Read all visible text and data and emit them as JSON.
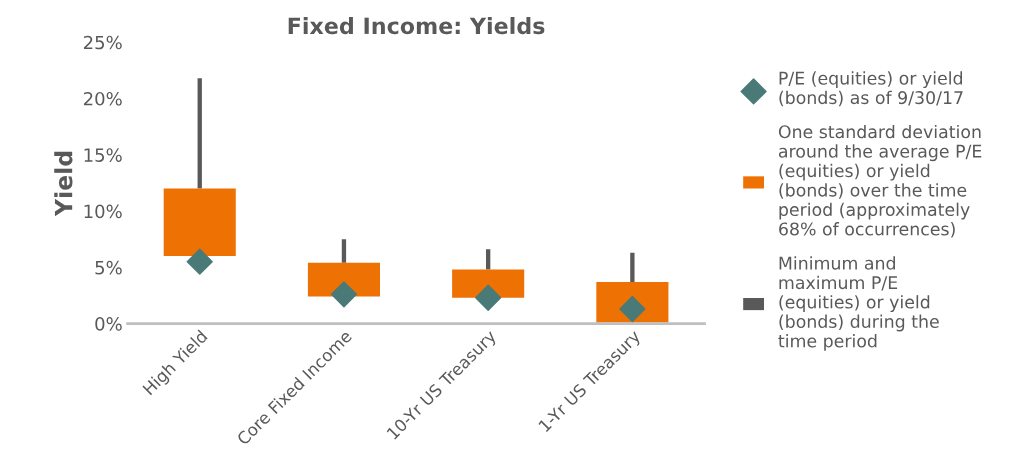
{
  "chart_data": {
    "type": "bar",
    "title": "Fixed Income: Yields",
    "ylabel": "Yield",
    "categories": [
      "High Yield",
      "Core Fixed Income",
      "10-Yr US Treasury",
      "1-Yr US Treasury"
    ],
    "series": [
      {
        "name": "Minimum and\nmaximum P/E\n(equities) or yield\n(bonds) during the\ntime period",
        "color": "#595959",
        "base": [
          12.0,
          5.4,
          4.8,
          3.7
        ],
        "values": [
          9.8,
          2.1,
          1.8,
          2.6
        ]
      },
      {
        "name": "One standard deviation\naround the average P/E\n(equities) or yield\n(bonds) over the time\nperiod (approximately\n68% of occurrences)",
        "color": "#ed7203",
        "base": [
          6.0,
          2.4,
          2.3,
          0.1
        ],
        "values": [
          6.0,
          3.0,
          2.5,
          3.6
        ]
      },
      {
        "type": "scatter",
        "name": "P/E (equities) or yield\n(bonds) as of 9/30/17",
        "color": "#4a7a78",
        "marker": "diamond",
        "x": [
          "High Yield",
          "Core Fixed Income",
          "10-Yr US Treasury",
          "1-Yr US Treasury"
        ],
        "values": [
          5.5,
          2.6,
          2.3,
          1.3
        ]
      }
    ],
    "ylim": [
      0,
      25
    ],
    "yticks": [
      {
        "value": 0,
        "label": "0%"
      },
      {
        "value": 5,
        "label": "5%"
      },
      {
        "value": 10,
        "label": "10%"
      },
      {
        "value": 15,
        "label": "15%"
      },
      {
        "value": 20,
        "label": "20%"
      },
      {
        "value": 25,
        "label": "25%"
      }
    ],
    "grid": false,
    "legend": "right"
  }
}
